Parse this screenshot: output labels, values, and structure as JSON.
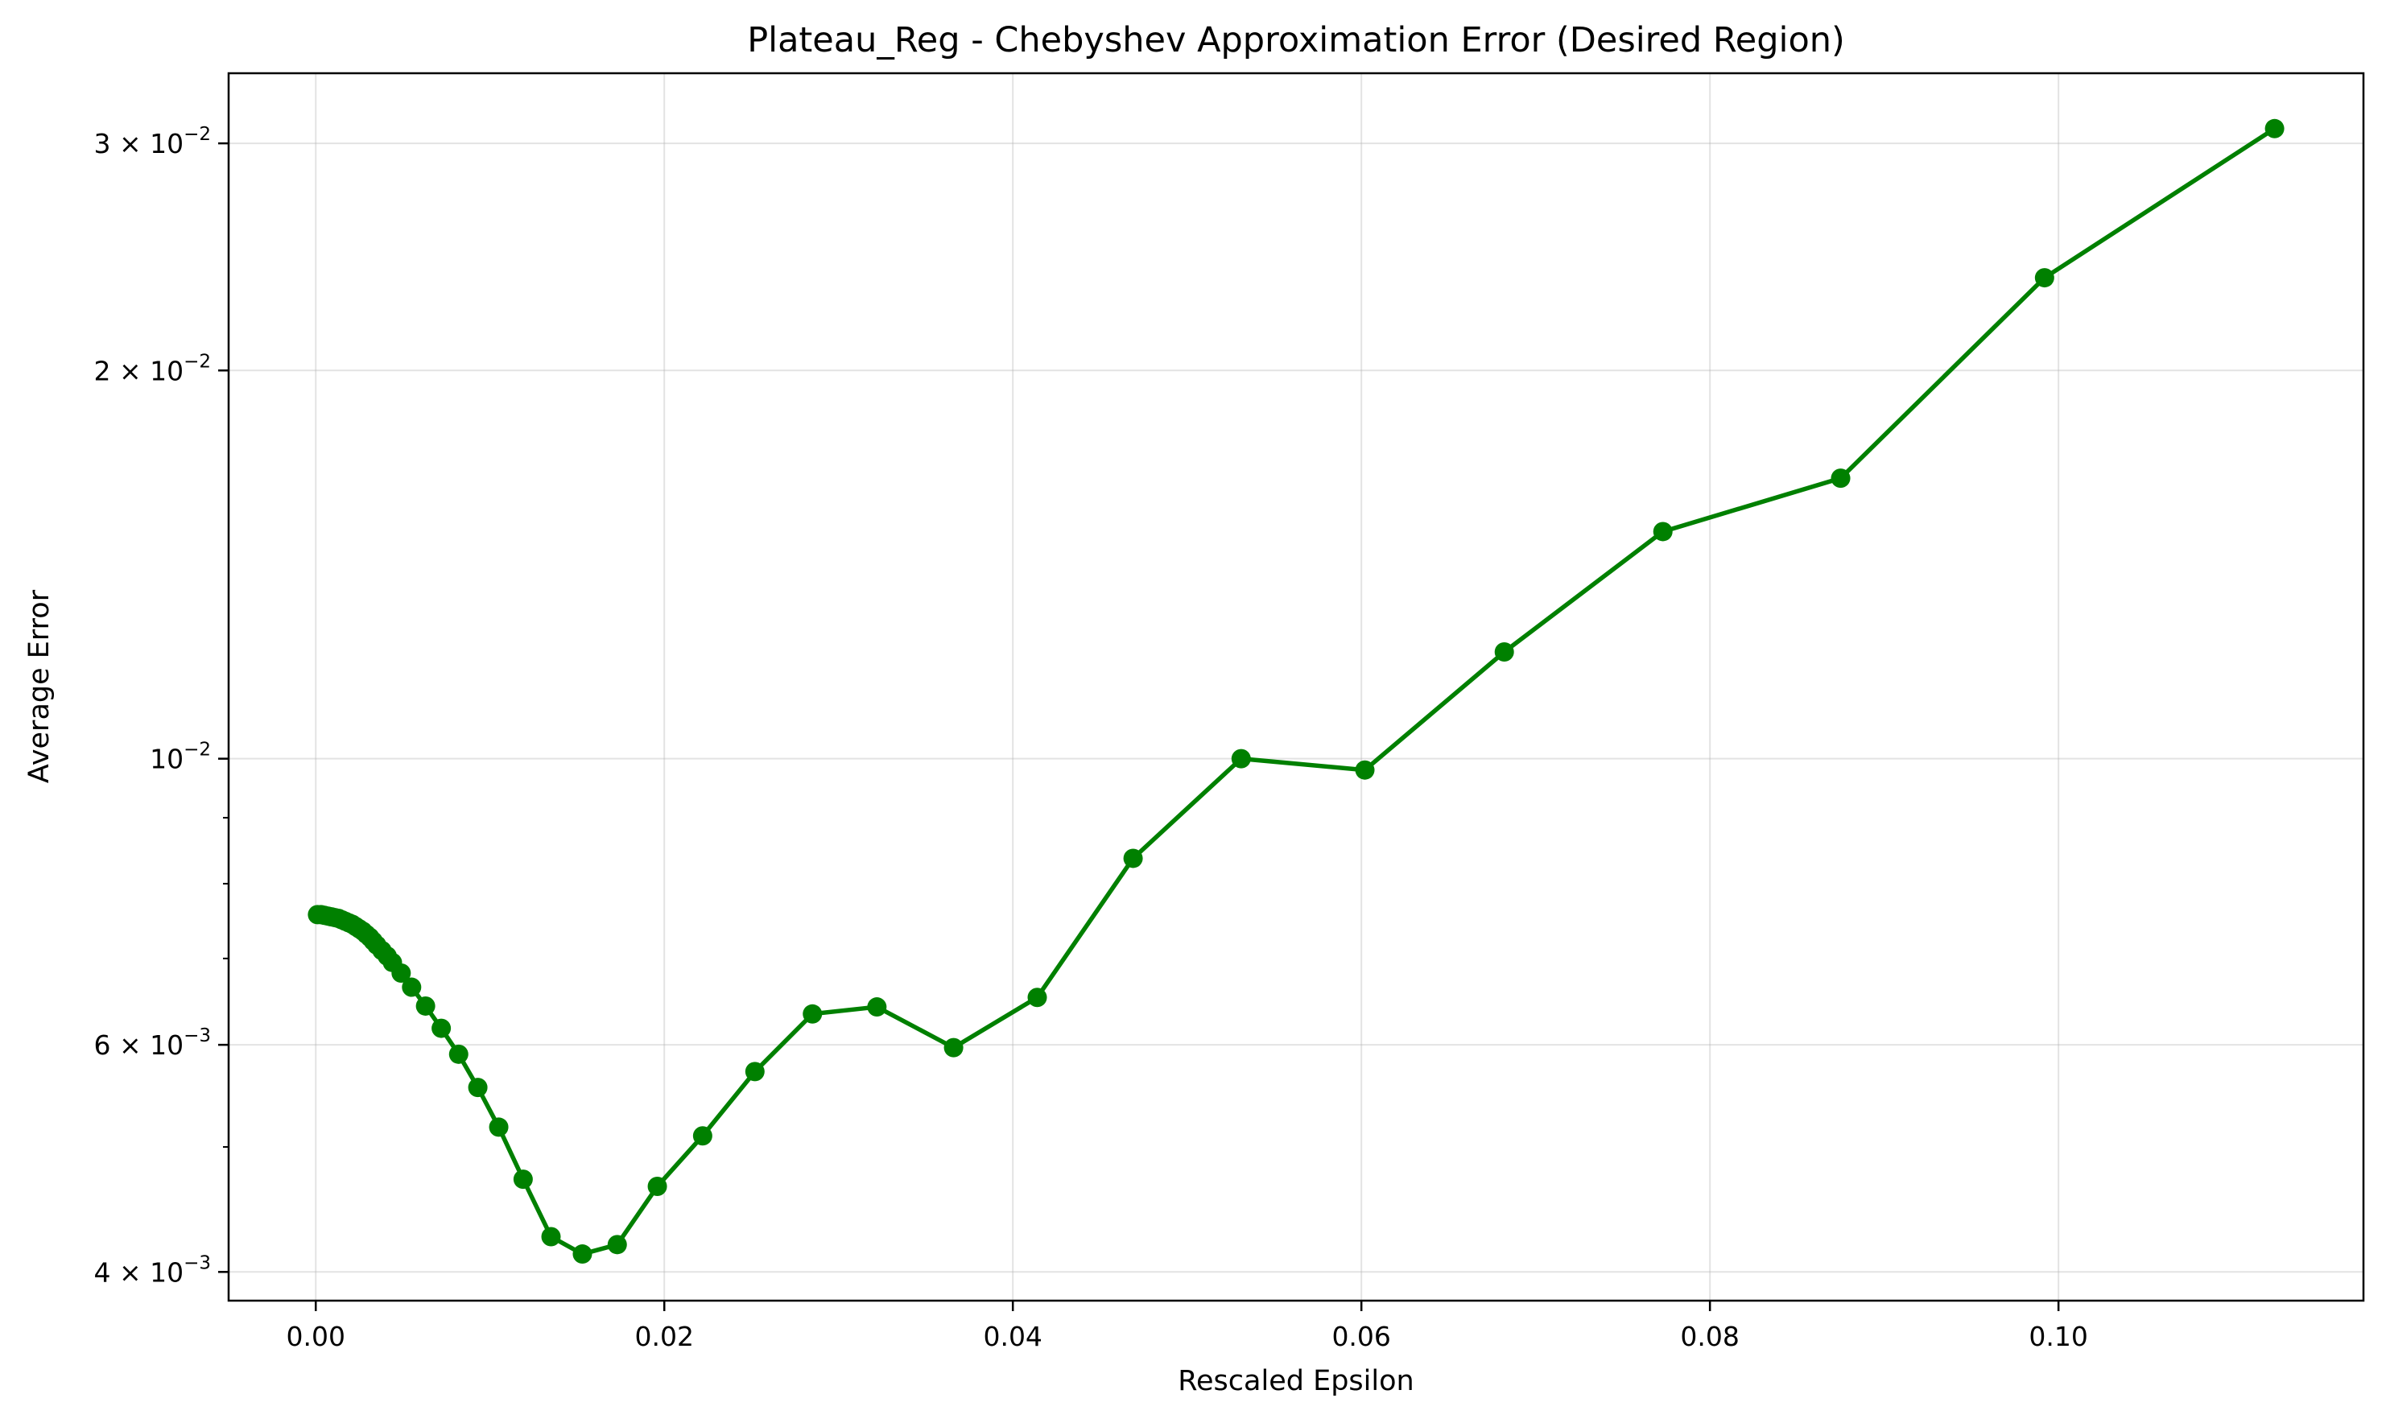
{
  "chart_data": {
    "type": "line",
    "title": "Plateau_Reg - Chebyshev Approximation Error (Desired Region)",
    "xlabel": "Rescaled Epsilon",
    "ylabel": "Average Error",
    "xlim": [
      -0.005,
      0.1175
    ],
    "ylim": [
      0.0038,
      0.034
    ],
    "yscale": "log",
    "grid": true,
    "line_color": "#008000",
    "marker": "circle",
    "x_ticks": [
      {
        "value": 0.0,
        "label": "0.00"
      },
      {
        "value": 0.02,
        "label": "0.02"
      },
      {
        "value": 0.04,
        "label": "0.04"
      },
      {
        "value": 0.06,
        "label": "0.06"
      },
      {
        "value": 0.08,
        "label": "0.08"
      },
      {
        "value": 0.1,
        "label": "0.10"
      }
    ],
    "y_ticks": [
      {
        "value": 0.004,
        "mantissa": "4",
        "base": "10",
        "exp": "−3"
      },
      {
        "value": 0.006,
        "mantissa": "6",
        "base": "10",
        "exp": "−3"
      },
      {
        "value": 0.01,
        "mantissa": "",
        "base": "10",
        "exp": "−2"
      },
      {
        "value": 0.02,
        "mantissa": "2",
        "base": "10",
        "exp": "−2"
      },
      {
        "value": 0.03,
        "mantissa": "3",
        "base": "10",
        "exp": "−2"
      }
    ],
    "y_minor_ticks": [
      0.005,
      0.007,
      0.008,
      0.009
    ],
    "series": [
      {
        "x": [
          0.0001,
          0.0003,
          0.0005,
          0.0007,
          0.0009,
          0.0011,
          0.0013,
          0.0015,
          0.0017,
          0.0019,
          0.0021,
          0.0023,
          0.0025,
          0.0027,
          0.0029,
          0.0031,
          0.0033,
          0.0035,
          0.0038,
          0.0041,
          0.0044,
          0.0049,
          0.0055,
          0.0063,
          0.0072,
          0.0082,
          0.0093,
          0.0105,
          0.0119,
          0.0135,
          0.0153,
          0.0173,
          0.0196,
          0.0222,
          0.0252,
          0.0285,
          0.0322,
          0.0366,
          0.0414,
          0.0469,
          0.0531,
          0.0602,
          0.0682,
          0.0773,
          0.0875,
          0.0992,
          0.1124
        ],
        "y": [
          0.00757,
          0.00757,
          0.00756,
          0.00755,
          0.00754,
          0.00753,
          0.00752,
          0.0075,
          0.00748,
          0.00746,
          0.00744,
          0.00741,
          0.00738,
          0.00735,
          0.00731,
          0.00727,
          0.00722,
          0.00717,
          0.0071,
          0.00703,
          0.00695,
          0.00682,
          0.00665,
          0.00643,
          0.00618,
          0.0059,
          0.00556,
          0.00518,
          0.00472,
          0.00426,
          0.00413,
          0.0042,
          0.00466,
          0.0051,
          0.00572,
          0.00634,
          0.00642,
          0.00597,
          0.00653,
          0.00837,
          0.01,
          0.0098,
          0.0121,
          0.015,
          0.0165,
          0.0236,
          0.0308
        ]
      }
    ]
  }
}
